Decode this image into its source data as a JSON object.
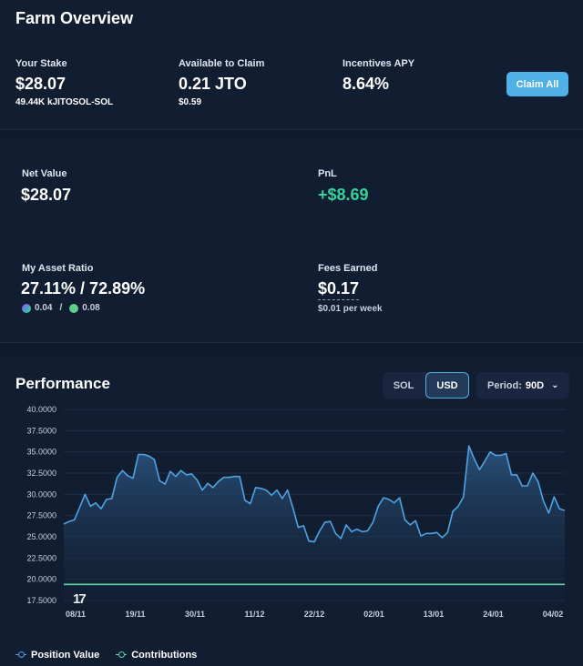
{
  "overview": {
    "title": "Farm Overview",
    "stake": {
      "label": "Your Stake",
      "value": "$28.07",
      "sub": "49.44K kJITOSOL-SOL"
    },
    "claim": {
      "label": "Available to Claim",
      "value": "0.21 JTO",
      "sub": "$0.59"
    },
    "apy": {
      "label": "Incentives APY",
      "value": "8.64%"
    },
    "claim_button": "Claim All"
  },
  "metrics": {
    "net_value": {
      "label": "Net Value",
      "value": "$28.07"
    },
    "pnl": {
      "label": "PnL",
      "value": "+$8.69"
    },
    "asset_ratio": {
      "label": "My Asset Ratio",
      "value": "27.11% / 72.89%",
      "sol_amount": "0.04",
      "separator": "/",
      "jito_amount": "0.08"
    },
    "fees": {
      "label": "Fees Earned",
      "value": "$0.17",
      "sub": "$0.01 per week"
    }
  },
  "performance": {
    "title": "Performance",
    "toggle": [
      "SOL",
      "USD"
    ],
    "active_toggle": "USD",
    "period_label": "Period:",
    "period_value": "90D",
    "tv_logo": "17"
  },
  "colors": {
    "accent": "#4fb1e8",
    "positive": "#34d39a",
    "line": "#4fa3e3",
    "contrib": "#5fd6a6"
  },
  "chart_data": {
    "type": "line",
    "ylim": [
      17.5,
      40
    ],
    "y_ticks": [
      "17.5000",
      "20.0000",
      "22.5000",
      "25.0000",
      "27.5000",
      "30.0000",
      "32.5000",
      "35.0000",
      "37.5000",
      "40.0000"
    ],
    "x_ticks": [
      "08/11",
      "19/11",
      "30/11",
      "11/12",
      "22/12",
      "02/01",
      "13/01",
      "24/01",
      "04/02"
    ],
    "series": [
      {
        "name": "Position Value",
        "values": [
          26.5,
          26.8,
          27.0,
          28.5,
          30.0,
          28.6,
          29.0,
          28.3,
          29.4,
          29.5,
          32.0,
          32.8,
          32.2,
          31.9,
          34.7,
          34.7,
          34.5,
          34.1,
          31.6,
          31.2,
          32.7,
          32.1,
          32.8,
          32.3,
          32.4,
          31.7,
          30.5,
          31.3,
          30.8,
          31.5,
          32.0,
          32.0,
          32.1,
          32.1,
          29.3,
          28.9,
          30.8,
          30.7,
          30.5,
          29.9,
          30.5,
          29.5,
          30.5,
          28.4,
          26.1,
          26.3,
          24.5,
          24.4,
          25.7,
          26.7,
          26.8,
          25.4,
          24.8,
          26.4,
          25.6,
          25.9,
          25.6,
          25.7,
          26.7,
          28.6,
          29.6,
          29.4,
          29.0,
          29.6,
          27.0,
          26.4,
          26.9,
          25.1,
          25.4,
          25.4,
          25.5,
          24.9,
          25.5,
          28.0,
          28.6,
          29.7,
          35.7,
          34.2,
          32.9,
          33.9,
          35.0,
          34.6,
          34.6,
          34.8,
          32.3,
          32.3,
          31.0,
          31.0,
          32.5,
          31.5,
          29.2,
          27.8,
          29.7,
          28.3,
          28.1
        ]
      },
      {
        "name": "Contributions",
        "values": [
          19.4,
          19.4
        ]
      }
    ],
    "legend": "bottom-left",
    "grid": true
  }
}
